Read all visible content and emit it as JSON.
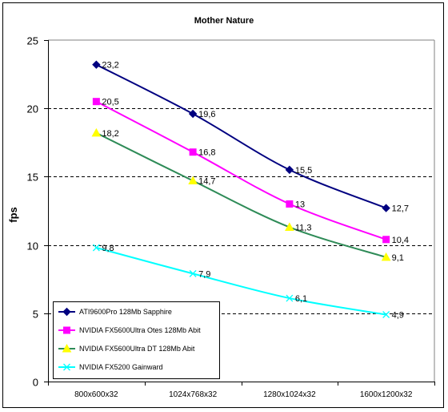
{
  "chart_data": {
    "type": "line",
    "title": "Mother Nature",
    "xlabel": "",
    "ylabel": "fps",
    "ylim": [
      0,
      25
    ],
    "yticks": [
      0,
      5,
      10,
      15,
      20,
      25
    ],
    "grid": "horizontal-dashed",
    "legend": "bottom-left",
    "categories": [
      "800x600x32",
      "1024x768x32",
      "1280x1024x32",
      "1600x1200x32"
    ],
    "series": [
      {
        "name": "ATI9600Pro 128Mb Sapphire",
        "values": [
          23.2,
          19.6,
          15.5,
          12.7
        ],
        "labels": [
          "23,2",
          "19,6",
          "15,5",
          "12,7"
        ],
        "color": "#000080",
        "marker": "diamond"
      },
      {
        "name": "NVIDIA FX5600Ultra Otes 128Mb Abit",
        "values": [
          20.5,
          16.8,
          13,
          10.4
        ],
        "labels": [
          "20,5",
          "16,8",
          "13",
          "10,4"
        ],
        "color": "#ff00ff",
        "marker": "square"
      },
      {
        "name": "NVIDIA FX5600Ultra DT 128Mb Abit",
        "values": [
          18.2,
          14.7,
          11.3,
          9.1
        ],
        "labels": [
          "18,2",
          "14,7",
          "11,3",
          "9,1"
        ],
        "color": "#2e8b57",
        "markerColor": "#ffff00",
        "marker": "triangle"
      },
      {
        "name": "NVIDIA FX5200 Gainward",
        "values": [
          9.8,
          7.9,
          6.1,
          4.9
        ],
        "labels": [
          "9,8",
          "7,9",
          "6,1",
          "4,9"
        ],
        "color": "#00ffff",
        "marker": "x"
      }
    ]
  }
}
